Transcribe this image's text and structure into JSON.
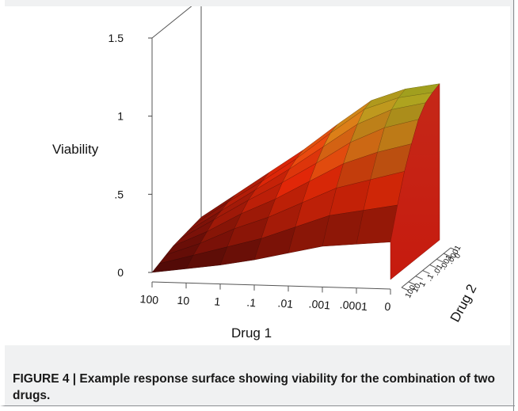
{
  "figure": {
    "caption": "FIGURE 4 | Example response surface showing viability for the combination of two drugs."
  },
  "chart_data": {
    "type": "surface",
    "zlabel": "Viability",
    "xlabel": "Drug 1",
    "ylabel": "Drug 2",
    "z_ticks": [
      "0",
      ".5",
      "1",
      "1.5"
    ],
    "zlim": [
      0,
      1.5
    ],
    "x_ticks": [
      "100",
      "10",
      "1",
      ".1",
      ".01",
      ".001",
      ".0001",
      "0"
    ],
    "y_ticks": [
      "0",
      ".0001",
      ".001",
      ".01",
      ".1",
      "1",
      "10",
      "100"
    ],
    "viability": [
      [
        0.0,
        0.03,
        0.06,
        0.1,
        0.15,
        0.2,
        0.22,
        0.24
      ],
      [
        0.02,
        0.08,
        0.14,
        0.2,
        0.28,
        0.36,
        0.4,
        0.44
      ],
      [
        0.04,
        0.12,
        0.22,
        0.3,
        0.4,
        0.5,
        0.56,
        0.62
      ],
      [
        0.06,
        0.16,
        0.28,
        0.38,
        0.5,
        0.62,
        0.7,
        0.76
      ],
      [
        0.07,
        0.2,
        0.33,
        0.45,
        0.58,
        0.72,
        0.82,
        0.88
      ],
      [
        0.08,
        0.22,
        0.36,
        0.5,
        0.65,
        0.8,
        0.9,
        0.95
      ],
      [
        0.09,
        0.24,
        0.38,
        0.53,
        0.7,
        0.86,
        0.94,
        0.98
      ],
      [
        0.1,
        0.25,
        0.4,
        0.55,
        0.72,
        0.88,
        0.96,
        1.0
      ]
    ]
  }
}
